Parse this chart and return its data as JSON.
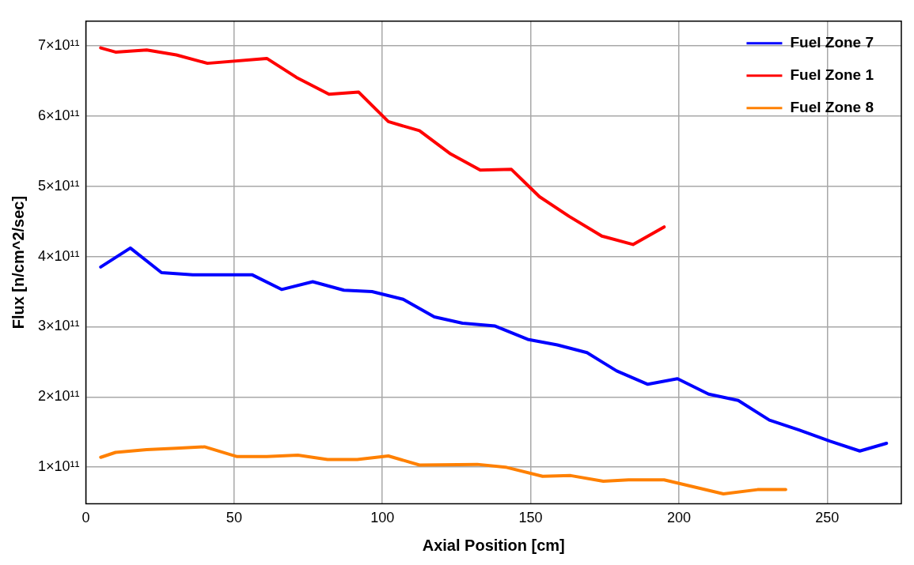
{
  "chart_data": {
    "type": "line",
    "xlabel": "Axial Position [cm]",
    "ylabel": "Flux [n/cm^2/sec]",
    "xlim": [
      0,
      275
    ],
    "xticks": [
      0,
      50,
      100,
      150,
      200,
      250
    ],
    "ylim": [
      48000000000.0,
      735000000000.0
    ],
    "yticks": [
      {
        "value": 100000000000.0,
        "label": "1×10¹¹"
      },
      {
        "value": 200000000000.0,
        "label": "2×10¹¹"
      },
      {
        "value": 300000000000.0,
        "label": "3×10¹¹"
      },
      {
        "value": 400000000000.0,
        "label": "4×10¹¹"
      },
      {
        "value": 500000000000.0,
        "label": "5×10¹¹"
      },
      {
        "value": 600000000000.0,
        "label": "6×10¹¹"
      },
      {
        "value": 700000000000.0,
        "label": "7×10¹¹"
      }
    ],
    "grid": true,
    "legend": "top right",
    "marker": "none",
    "line_style": "solid",
    "series": [
      {
        "name": "Fuel Zone 7",
        "color": "#0000ff",
        "x": [
          5,
          15,
          25.5,
          36,
          56,
          66,
          76.5,
          87,
          96.5,
          107,
          117.5,
          127,
          138,
          149,
          159,
          169,
          179,
          189.5,
          199.5,
          210,
          220,
          230.5,
          240.5,
          251,
          261,
          270
        ],
        "values": [
          385000000000.0,
          412000000000.0,
          377000000000.0,
          374000000000.0,
          374000000000.0,
          353000000000.0,
          364000000000.0,
          352000000000.0,
          350000000000.0,
          339000000000.0,
          314000000000.0,
          305000000000.0,
          301000000000.0,
          282000000000.0,
          274000000000.0,
          263000000000.0,
          237000000000.0,
          218000000000.0,
          226000000000.0,
          204000000000.0,
          195000000000.0,
          167000000000.0,
          153000000000.0,
          137000000000.0,
          123000000000.0,
          134000000000.0
        ]
      },
      {
        "name": "Fuel Zone 1",
        "color": "#ff0000",
        "x": [
          5,
          10,
          20.5,
          30.5,
          41,
          61,
          71,
          82,
          92,
          102,
          112.5,
          123,
          133,
          143.5,
          153,
          163,
          174,
          184.5,
          195
        ],
        "values": [
          697000000000.0,
          691000000000.0,
          694000000000.0,
          687000000000.0,
          675000000000.0,
          682000000000.0,
          655000000000.0,
          631000000000.0,
          634000000000.0,
          592000000000.0,
          579000000000.0,
          546000000000.0,
          523000000000.0,
          524000000000.0,
          485000000000.0,
          457000000000.0,
          429000000000.0,
          417000000000.0,
          442000000000.0
        ]
      },
      {
        "name": "Fuel Zone 8",
        "color": "#ff8000",
        "x": [
          5,
          10,
          20.5,
          30.5,
          40,
          51,
          61,
          71.5,
          81.5,
          91.5,
          102,
          112.5,
          132,
          141.5,
          154,
          163.5,
          174.5,
          183,
          195,
          215,
          226.5,
          236
        ],
        "values": [
          114000000000.0,
          121000000000.0,
          125000000000.0,
          127000000000.0,
          129000000000.0,
          115000000000.0,
          115000000000.0,
          117000000000.0,
          111000000000.0,
          111000000000.0,
          116000000000.0,
          103000000000.0,
          104000000000.0,
          100000000000.0,
          87000000000.0,
          88000000000.0,
          80000000000.0,
          82000000000.0,
          82000000000.0,
          62000000000.0,
          68000000000.0,
          68000000000.0
        ]
      }
    ]
  }
}
